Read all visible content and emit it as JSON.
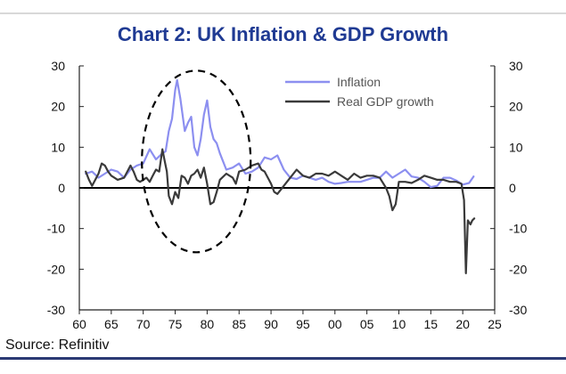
{
  "chart_data": {
    "type": "line",
    "title": "Chart 2: UK Inflation & GDP Growth",
    "source": "Source: Refinitiv",
    "xlabel": "",
    "ylabel": "",
    "xlim": [
      1960,
      2025
    ],
    "ylim": [
      -30,
      30
    ],
    "x_ticks": [
      60,
      65,
      70,
      75,
      80,
      85,
      90,
      95,
      0,
      5,
      10,
      15,
      20,
      25
    ],
    "x_tick_labels": [
      "60",
      "65",
      "70",
      "75",
      "80",
      "85",
      "90",
      "95",
      "00",
      "05",
      "10",
      "15",
      "20",
      "25"
    ],
    "y_ticks": [
      30,
      20,
      10,
      0,
      -10,
      -20,
      -30
    ],
    "y_tick_labels": [
      "30",
      "20",
      "10",
      "0",
      "-10",
      "-20",
      "-30"
    ],
    "legend_position": "top-right",
    "grid": false,
    "series": [
      {
        "name": "Inflation",
        "color": "#8c8ff0",
        "x": [
          1961,
          1962,
          1963,
          1964,
          1965,
          1966,
          1967,
          1968,
          1969,
          1970,
          1971,
          1972,
          1973,
          1973.5,
          1974,
          1974.5,
          1975,
          1975.3,
          1975.8,
          1976.5,
          1977,
          1977.5,
          1978,
          1978.5,
          1979,
          1979.5,
          1980,
          1980.5,
          1981,
          1981.5,
          1982,
          1983,
          1984,
          1985,
          1986,
          1987,
          1988,
          1989,
          1990,
          1991,
          1992,
          1993,
          1994,
          1995,
          1996,
          1997,
          1998,
          1999,
          2000,
          2001,
          2002,
          2003,
          2004,
          2005,
          2006,
          2007,
          2008,
          2009,
          2010,
          2011,
          2012,
          2013,
          2014,
          2015,
          2016,
          2017,
          2018,
          2019,
          2020,
          2021,
          2021.7
        ],
        "values": [
          3.5,
          4,
          2.5,
          3.5,
          4.5,
          4,
          2.5,
          4.5,
          5.5,
          6,
          9.5,
          7,
          8.5,
          9,
          14,
          17,
          24,
          26.5,
          22,
          14,
          16,
          17.5,
          10,
          8,
          12,
          18,
          21.5,
          15,
          12,
          11,
          8.5,
          4.5,
          5,
          6,
          3.5,
          4,
          5,
          7.5,
          7,
          8,
          4.5,
          2.5,
          2.2,
          3,
          2.5,
          2,
          2.5,
          1.5,
          1,
          1.2,
          1.5,
          1.5,
          1.5,
          2,
          2.5,
          2.5,
          4,
          2.5,
          3.5,
          4.5,
          2.8,
          2.5,
          1.5,
          0.2,
          0.5,
          2.5,
          2.5,
          1.8,
          0.8,
          1.2,
          2.8
        ]
      },
      {
        "name": "Real GDP growth",
        "color": "#3a3a3a",
        "x": [
          1961,
          1961.5,
          1962,
          1962.5,
          1963,
          1963.5,
          1964,
          1964.5,
          1965,
          1966,
          1967,
          1968,
          1968.5,
          1969,
          1969.5,
          1970,
          1970.5,
          1971,
          1971.5,
          1972,
          1972.5,
          1973,
          1973.3,
          1973.7,
          1974,
          1974.5,
          1975,
          1975.5,
          1976,
          1976.5,
          1977,
          1977.5,
          1978,
          1978.5,
          1979,
          1979.5,
          1980,
          1980.5,
          1981,
          1981.5,
          1982,
          1983,
          1984,
          1984.5,
          1985,
          1986,
          1987,
          1988,
          1988.5,
          1989,
          1990,
          1990.5,
          1991,
          1991.5,
          1992,
          1993,
          1994,
          1995,
          1996,
          1997,
          1998,
          1999,
          2000,
          2001,
          2002,
          2003,
          2004,
          2005,
          2006,
          2007,
          2008,
          2008.5,
          2009,
          2009.5,
          2010,
          2011,
          2012,
          2013,
          2014,
          2015,
          2016,
          2017,
          2018,
          2019,
          2019.8,
          2020.2,
          2020.5,
          2020.8,
          2021.2,
          2021.5,
          2021.8
        ],
        "values": [
          4,
          2,
          0.5,
          2,
          3.5,
          6,
          5.5,
          4,
          3,
          2,
          2.5,
          5.5,
          4,
          2,
          1.5,
          2,
          2.5,
          1.5,
          3,
          4.5,
          4,
          9.5,
          7,
          4,
          -2,
          -4,
          -1,
          -2.5,
          3,
          2.5,
          1,
          3,
          3.5,
          4.5,
          2.5,
          5,
          1,
          -4,
          -3.5,
          -1,
          2,
          3.5,
          2.5,
          1,
          4,
          4.5,
          5.5,
          6,
          4.5,
          4,
          1,
          -1,
          -1.5,
          -0.5,
          0.5,
          2.5,
          4.5,
          3,
          2.5,
          3.5,
          3.5,
          3,
          4,
          3,
          2,
          3.5,
          2.5,
          3,
          3,
          2.5,
          0,
          -2,
          -5.5,
          -4,
          1.5,
          1.5,
          1.2,
          2,
          3,
          2.5,
          2,
          2,
          1.5,
          1.5,
          1,
          -3,
          -21,
          -8,
          -9,
          -8,
          -7.5
        ]
      }
    ]
  }
}
